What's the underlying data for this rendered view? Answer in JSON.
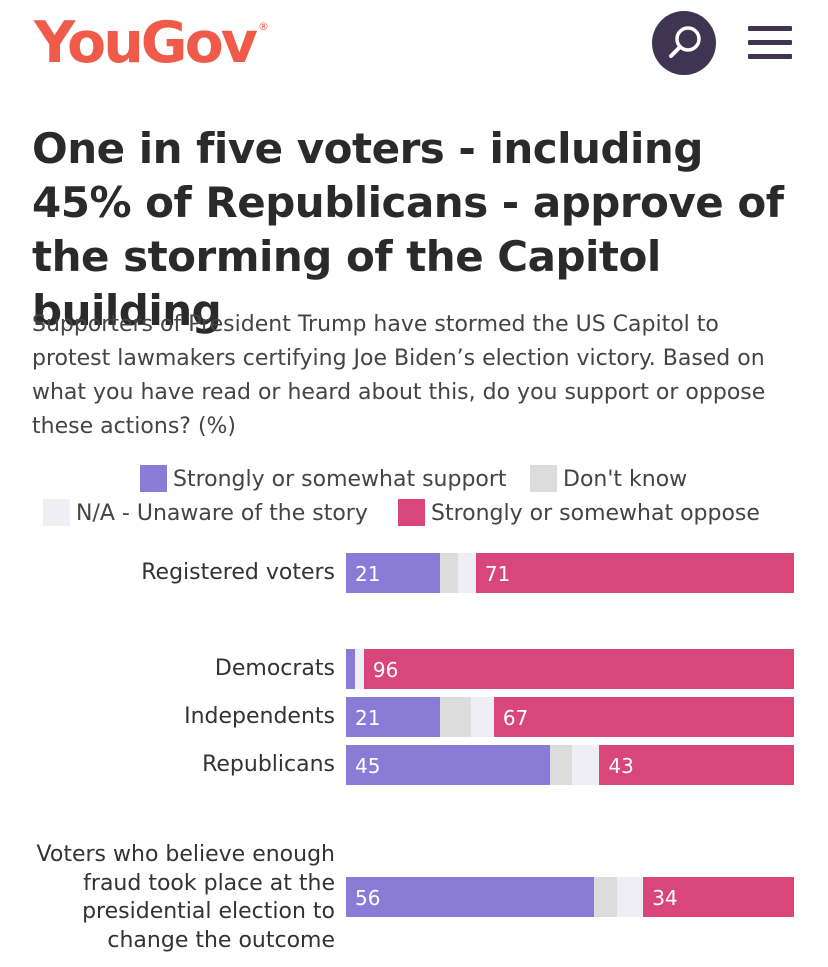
{
  "header": {
    "logo_text": "YouGov",
    "registered_mark": "®",
    "search_icon": "search-icon",
    "menu_icon": "menu-icon"
  },
  "article": {
    "title": "One in five voters - including 45% of Republicans - approve of the storming of the Capitol building",
    "subtitle": "Supporters of President Trump have stormed the US Capitol to protest lawmakers certifying Joe Biden’s election victory. Based on what you have read or heard about this, do you support or oppose these actions? (%)"
  },
  "colors": {
    "support": "#8a7bd6",
    "dont_know": "#dcdcdc",
    "na": "#eeeef4",
    "oppose": "#d9467a",
    "brand": "#f05a49",
    "dark": "#3f3552"
  },
  "chart_data": {
    "type": "bar",
    "orientation": "horizontal-stacked",
    "legend": [
      "Strongly or somewhat support",
      "Don't know",
      "N/A - Unaware of the story",
      "Strongly or somewhat oppose"
    ],
    "categories": [
      "Registered voters",
      "Democrats",
      "Independents",
      "Republicans",
      "Voters who believe enough fraud took place at the presidential election to change the outcome"
    ],
    "series": [
      {
        "name": "Strongly or somewhat support",
        "values": [
          21,
          2,
          21,
          45,
          56
        ],
        "labels": [
          "21",
          "",
          "21",
          "45",
          "56"
        ]
      },
      {
        "name": "Don't know",
        "values": [
          4,
          0,
          7,
          5,
          5
        ],
        "labels": [
          "",
          "",
          "",
          "",
          ""
        ]
      },
      {
        "name": "N/A - Unaware of the story",
        "values": [
          4,
          2,
          5,
          6,
          6
        ],
        "labels": [
          "",
          "",
          "",
          "",
          ""
        ]
      },
      {
        "name": "Strongly or somewhat oppose",
        "values": [
          71,
          96,
          67,
          43,
          34
        ],
        "labels": [
          "71",
          "96",
          "67",
          "43",
          "34"
        ]
      }
    ],
    "xlim": [
      0,
      100
    ]
  }
}
